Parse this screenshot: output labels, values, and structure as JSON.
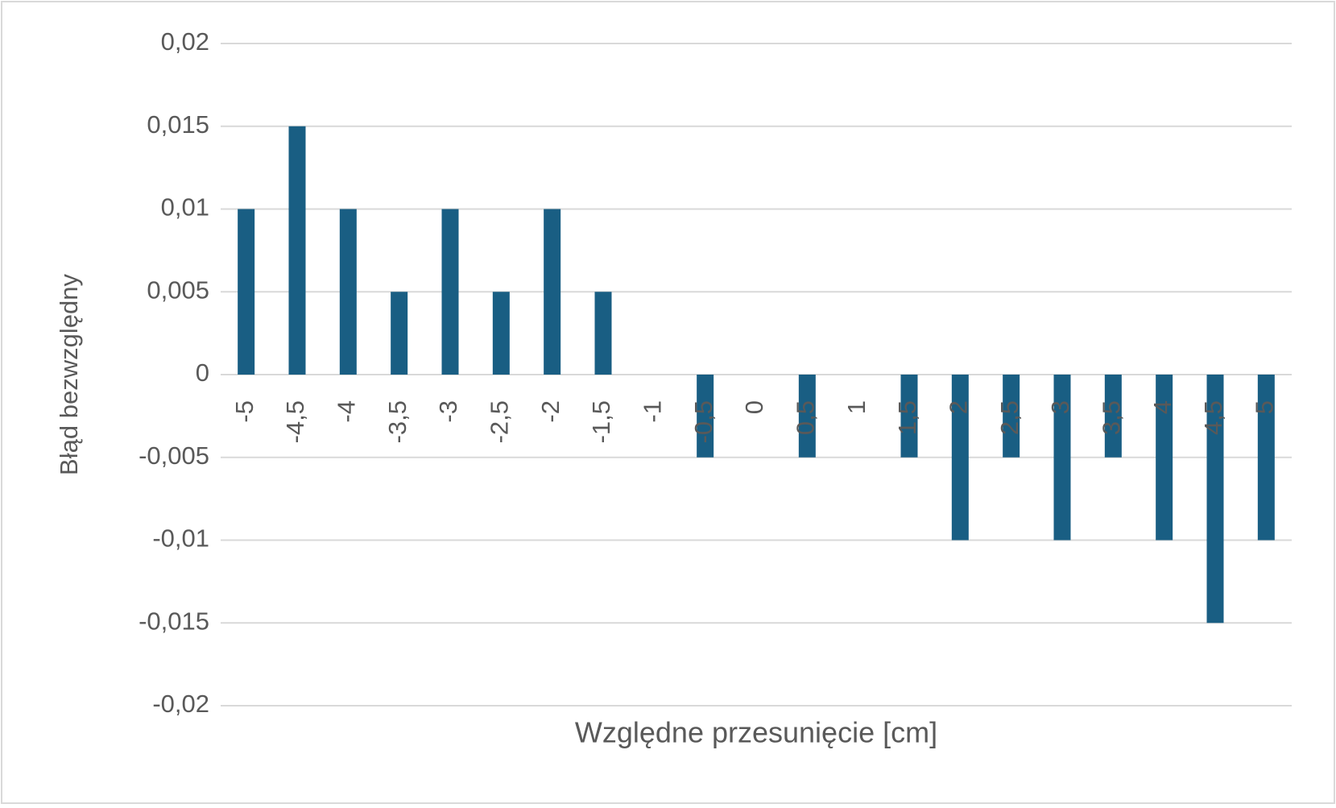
{
  "chart_data": {
    "type": "bar",
    "x_label": "Względne przesunięcie [cm]",
    "y_label": "Błąd bezwzględny",
    "categories": [
      "-5",
      "-4,5",
      "-4",
      "-3,5",
      "-3",
      "-2,5",
      "-2",
      "-1,5",
      "-1",
      "-0,5",
      "0",
      "0,5",
      "1",
      "1,5",
      "2",
      "2,5",
      "3",
      "3,5",
      "4",
      "4,5",
      "5"
    ],
    "values": [
      0.01,
      0.015,
      0.01,
      0.005,
      0.01,
      0.005,
      0.01,
      0.005,
      0,
      -0.005,
      0,
      -0.005,
      0,
      -0.005,
      -0.01,
      -0.005,
      -0.01,
      -0.005,
      -0.01,
      -0.015,
      -0.01
    ],
    "color": "#195e83",
    "ylim": [
      -0.02,
      0.02
    ],
    "yticks": [
      {
        "value": -0.02,
        "label": "-0,02"
      },
      {
        "value": -0.015,
        "label": "-0,015"
      },
      {
        "value": -0.01,
        "label": "-0,01"
      },
      {
        "value": -0.005,
        "label": "-0,005"
      },
      0,
      {
        "value": 0.005,
        "label": "0,005"
      },
      {
        "value": 0.01,
        "label": "0,01"
      },
      {
        "value": 0.015,
        "label": "0,015"
      },
      {
        "value": 0.02,
        "label": "0,02"
      }
    ],
    "grid": true
  }
}
